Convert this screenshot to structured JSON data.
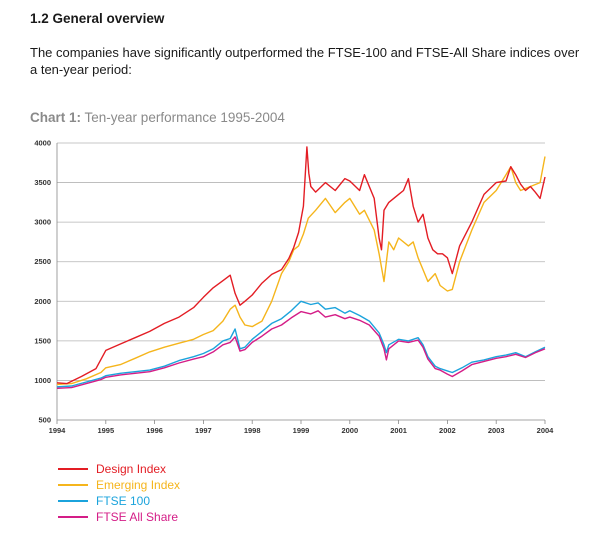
{
  "section": {
    "heading": "1.2  General overview",
    "intro": "The companies have significantly outperformed the FTSE-100 and FTSE-All Share indices over a ten-year period:"
  },
  "chart_title": {
    "label": "Chart 1:",
    "text": "Ten-year performance 1995-2004"
  },
  "chart_data": {
    "type": "line",
    "title": "Chart 1: Ten-year performance 1995-2004",
    "xlabel": "",
    "ylabel": "",
    "xlim": [
      1994,
      2004
    ],
    "ylim": [
      500,
      4000
    ],
    "x_ticks": [
      "1994",
      "1995",
      "1996",
      "1997",
      "1998",
      "1999",
      "2000",
      "2001",
      "2002",
      "2003",
      "2004"
    ],
    "y_ticks": [
      "500",
      "1000",
      "1500",
      "2000",
      "2500",
      "3000",
      "3500",
      "4000"
    ],
    "grid": "horizontal",
    "legend_position": "bottom-left",
    "series": [
      {
        "name": "Design Index",
        "color": "#e31d24",
        "x": [
          1994.0,
          1994.2,
          1994.5,
          1994.8,
          1995.0,
          1995.3,
          1995.6,
          1995.9,
          1996.2,
          1996.5,
          1996.8,
          1997.0,
          1997.2,
          1997.4,
          1997.55,
          1997.65,
          1997.75,
          1997.85,
          1998.0,
          1998.2,
          1998.4,
          1998.6,
          1998.75,
          1998.85,
          1998.95,
          1999.05,
          1999.12,
          1999.16,
          1999.2,
          1999.3,
          1999.5,
          1999.7,
          1999.9,
          2000.0,
          2000.2,
          2000.3,
          2000.5,
          2000.6,
          2000.65,
          2000.7,
          2000.8,
          2000.9,
          2001.0,
          2001.1,
          2001.2,
          2001.3,
          2001.4,
          2001.5,
          2001.6,
          2001.7,
          2001.8,
          2001.9,
          2002.0,
          2002.1,
          2002.25,
          2002.5,
          2002.75,
          2003.0,
          2003.2,
          2003.3,
          2003.4,
          2003.5,
          2003.6,
          2003.7,
          2003.8,
          2003.9,
          2004.0
        ],
        "values": [
          970,
          960,
          1050,
          1150,
          1380,
          1460,
          1540,
          1620,
          1720,
          1800,
          1920,
          2050,
          2170,
          2260,
          2330,
          2100,
          1950,
          2000,
          2080,
          2230,
          2340,
          2400,
          2540,
          2680,
          2870,
          3200,
          3950,
          3620,
          3450,
          3380,
          3500,
          3400,
          3550,
          3520,
          3400,
          3600,
          3300,
          2800,
          2650,
          3150,
          3250,
          3300,
          3350,
          3400,
          3550,
          3200,
          3000,
          3100,
          2800,
          2650,
          2600,
          2600,
          2550,
          2350,
          2700,
          3000,
          3350,
          3500,
          3520,
          3700,
          3600,
          3480,
          3400,
          3450,
          3380,
          3300,
          3570
        ]
      },
      {
        "name": "Emerging Index",
        "color": "#f5b51c",
        "x": [
          1994.0,
          1994.3,
          1994.6,
          1994.9,
          1995.0,
          1995.3,
          1995.6,
          1995.9,
          1996.2,
          1996.5,
          1996.8,
          1997.0,
          1997.2,
          1997.4,
          1997.55,
          1997.65,
          1997.75,
          1997.85,
          1998.0,
          1998.2,
          1998.4,
          1998.6,
          1998.75,
          1998.85,
          1998.95,
          1999.05,
          1999.15,
          1999.3,
          1999.5,
          1999.7,
          1999.9,
          2000.0,
          2000.2,
          2000.3,
          2000.5,
          2000.6,
          2000.7,
          2000.8,
          2000.9,
          2001.0,
          2001.2,
          2001.3,
          2001.4,
          2001.5,
          2001.6,
          2001.75,
          2001.85,
          2002.0,
          2002.1,
          2002.25,
          2002.5,
          2002.75,
          2003.0,
          2003.2,
          2003.3,
          2003.4,
          2003.5,
          2003.7,
          2003.9,
          2004.0
        ],
        "values": [
          950,
          960,
          1020,
          1100,
          1160,
          1200,
          1280,
          1360,
          1420,
          1470,
          1520,
          1580,
          1630,
          1750,
          1900,
          1950,
          1800,
          1700,
          1680,
          1750,
          2000,
          2350,
          2500,
          2650,
          2700,
          2850,
          3050,
          3150,
          3300,
          3120,
          3250,
          3300,
          3100,
          3150,
          2900,
          2600,
          2250,
          2750,
          2650,
          2800,
          2700,
          2750,
          2550,
          2400,
          2250,
          2350,
          2200,
          2130,
          2150,
          2500,
          2900,
          3250,
          3400,
          3600,
          3700,
          3500,
          3400,
          3450,
          3500,
          3830
        ]
      },
      {
        "name": "FTSE 100",
        "color": "#1ba3dc",
        "x": [
          1994.0,
          1994.3,
          1994.6,
          1994.9,
          1995.0,
          1995.3,
          1995.6,
          1995.9,
          1996.2,
          1996.5,
          1996.8,
          1997.0,
          1997.2,
          1997.4,
          1997.55,
          1997.65,
          1997.75,
          1997.85,
          1998.0,
          1998.2,
          1998.4,
          1998.6,
          1998.8,
          1999.0,
          1999.2,
          1999.35,
          1999.5,
          1999.7,
          1999.9,
          2000.0,
          2000.2,
          2000.4,
          2000.6,
          2000.7,
          2000.75,
          2000.8,
          2001.0,
          2001.2,
          2001.4,
          2001.5,
          2001.6,
          2001.75,
          2001.85,
          2002.0,
          2002.1,
          2002.3,
          2002.5,
          2002.75,
          2003.0,
          2003.2,
          2003.4,
          2003.6,
          2003.8,
          2004.0
        ],
        "values": [
          920,
          930,
          980,
          1030,
          1060,
          1090,
          1110,
          1130,
          1180,
          1250,
          1300,
          1340,
          1400,
          1500,
          1530,
          1650,
          1400,
          1420,
          1520,
          1620,
          1720,
          1780,
          1880,
          2000,
          1960,
          1980,
          1900,
          1920,
          1850,
          1880,
          1820,
          1750,
          1600,
          1450,
          1350,
          1450,
          1520,
          1500,
          1540,
          1450,
          1300,
          1180,
          1150,
          1120,
          1100,
          1160,
          1230,
          1260,
          1300,
          1320,
          1350,
          1300,
          1360,
          1420
        ]
      },
      {
        "name": "FTSE All Share",
        "color": "#d41d87",
        "x": [
          1994.0,
          1994.3,
          1994.6,
          1994.9,
          1995.0,
          1995.3,
          1995.6,
          1995.9,
          1996.2,
          1996.5,
          1996.8,
          1997.0,
          1997.2,
          1997.4,
          1997.55,
          1997.65,
          1997.75,
          1997.85,
          1998.0,
          1998.2,
          1998.4,
          1998.6,
          1998.8,
          1999.0,
          1999.2,
          1999.35,
          1999.5,
          1999.7,
          1999.9,
          2000.0,
          2000.2,
          2000.4,
          2000.6,
          2000.7,
          2000.75,
          2000.8,
          2001.0,
          2001.2,
          2001.4,
          2001.5,
          2001.6,
          2001.75,
          2001.85,
          2002.0,
          2002.1,
          2002.3,
          2002.5,
          2002.75,
          2003.0,
          2003.2,
          2003.4,
          2003.6,
          2003.8,
          2004.0
        ],
        "values": [
          900,
          910,
          960,
          1010,
          1040,
          1070,
          1090,
          1110,
          1160,
          1220,
          1270,
          1300,
          1360,
          1450,
          1480,
          1550,
          1370,
          1390,
          1480,
          1560,
          1650,
          1700,
          1790,
          1870,
          1840,
          1880,
          1800,
          1830,
          1780,
          1800,
          1760,
          1700,
          1560,
          1400,
          1260,
          1400,
          1500,
          1480,
          1510,
          1420,
          1270,
          1150,
          1130,
          1080,
          1050,
          1120,
          1200,
          1240,
          1280,
          1300,
          1330,
          1290,
          1350,
          1400
        ]
      }
    ]
  }
}
